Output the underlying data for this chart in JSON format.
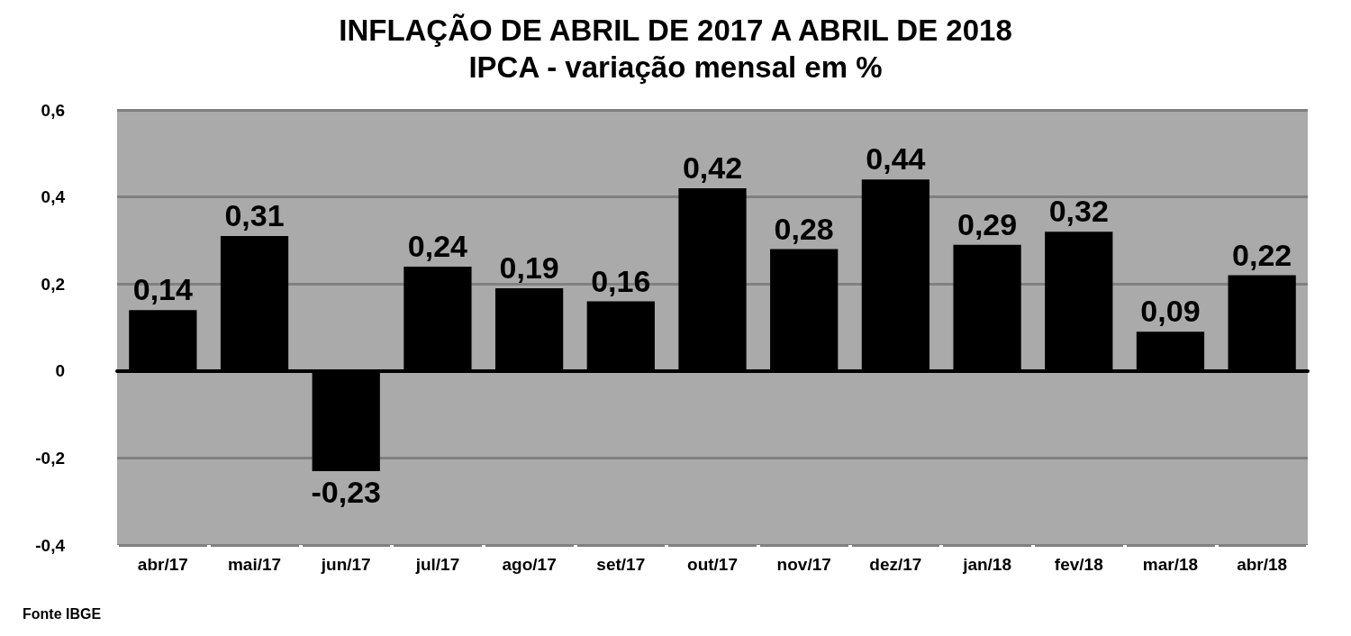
{
  "chart_data": {
    "type": "bar",
    "title": "INFLAÇÃO DE ABRIL DE 2017 A ABRIL DE 2018",
    "subtitle": "IPCA - variação mensal em %",
    "categories": [
      "abr/17",
      "mai/17",
      "jun/17",
      "jul/17",
      "ago/17",
      "set/17",
      "out/17",
      "nov/17",
      "dez/17",
      "jan/18",
      "fev/18",
      "mar/18",
      "abr/18"
    ],
    "values": [
      0.14,
      0.31,
      -0.23,
      0.24,
      0.19,
      0.16,
      0.42,
      0.28,
      0.44,
      0.29,
      0.32,
      0.09,
      0.22
    ],
    "value_labels": [
      "0,14",
      "0,31",
      "-0,23",
      "0,24",
      "0,19",
      "0,16",
      "0,42",
      "0,28",
      "0,44",
      "0,29",
      "0,32",
      "0,09",
      "0,22"
    ],
    "color": "#000000",
    "ylim": [
      -0.4,
      0.6
    ],
    "yticks": [
      {
        "value": -0.4,
        "label": "-0,4"
      },
      {
        "value": -0.2,
        "label": "-0,2"
      },
      0,
      {
        "value": 0.2,
        "label": "0,2"
      },
      {
        "value": 0.4,
        "label": "0,4"
      },
      {
        "value": 0.6,
        "label": "0,6"
      }
    ],
    "grid": "y",
    "annotations": [
      "Fonte IBGE"
    ]
  }
}
